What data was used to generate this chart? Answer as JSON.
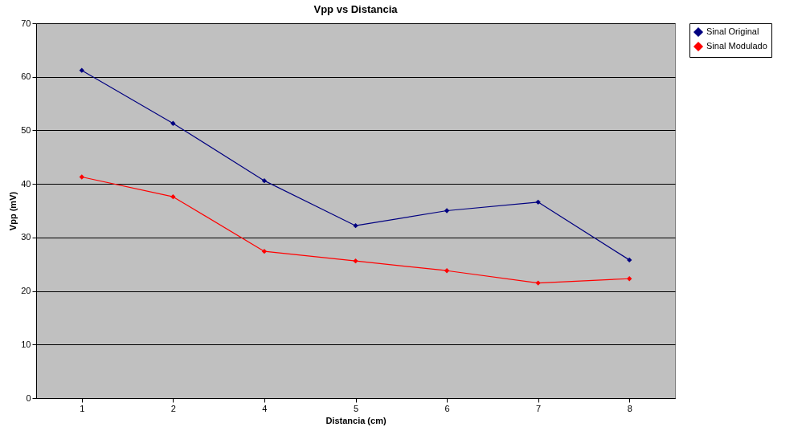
{
  "chart_data": {
    "type": "line",
    "title": "Vpp vs Distancia",
    "xlabel": "Distancia (cm)",
    "ylabel": "Vpp (mV)",
    "categories": [
      "1",
      "2",
      "4",
      "5",
      "6",
      "7",
      "8"
    ],
    "series": [
      {
        "name": "Sinal Original",
        "color": "#000080",
        "values": [
          61.2,
          51.3,
          40.6,
          32.2,
          35.0,
          36.6,
          25.8
        ]
      },
      {
        "name": "Sinal Modulado",
        "color": "#ff0000",
        "values": [
          41.3,
          37.6,
          27.4,
          25.6,
          23.8,
          21.5,
          22.3
        ]
      }
    ],
    "ylim": [
      0,
      70
    ],
    "yticks": [
      0,
      10,
      20,
      30,
      40,
      50,
      60,
      70
    ],
    "grid": "y",
    "legend": "right",
    "marker": "diamond"
  }
}
